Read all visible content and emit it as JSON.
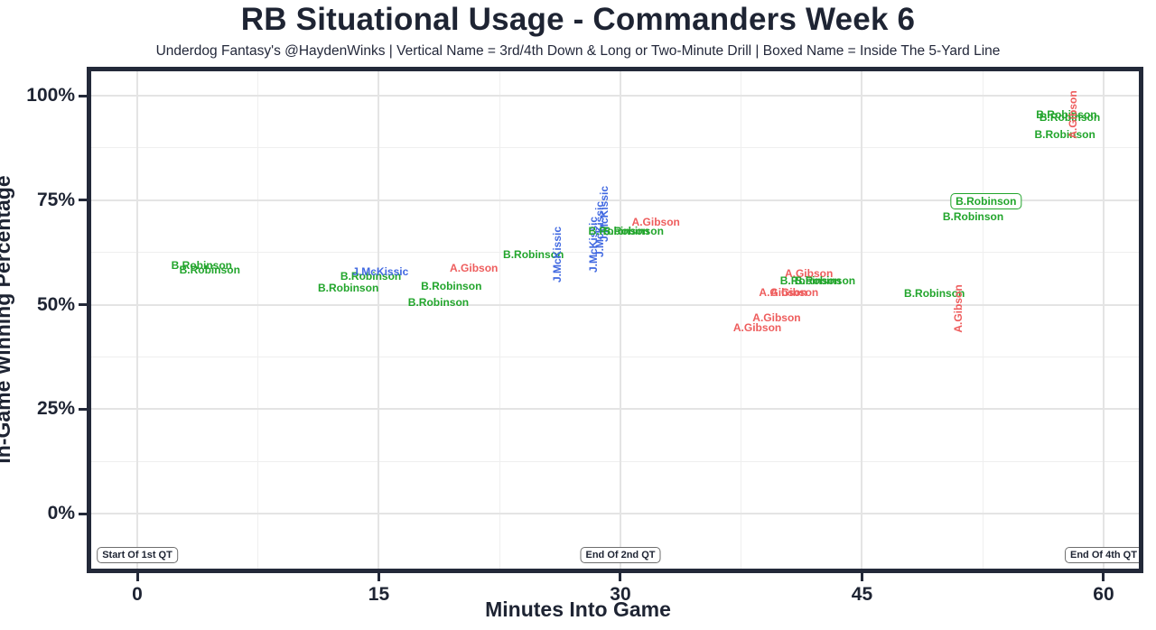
{
  "header": {
    "title": "RB Situational Usage - Commanders Week 6",
    "subtitle": "Underdog Fantasy's @HaydenWinks | Vertical Name = 3rd/4th Down & Long or Two-Minute Drill | Boxed Name = Inside The 5-Yard Line"
  },
  "chart_data": {
    "type": "scatter",
    "title": "RB Situational Usage - Commanders Week 6",
    "subtitle": "Underdog Fantasy's @HaydenWinks | Vertical Name = 3rd/4th Down & Long or Two-Minute Drill | Boxed Name = Inside The 5-Yard Line",
    "xlabel": "Minutes Into Game",
    "ylabel": "In-Game Winning Percentage",
    "xlim": [
      -2.9,
      62.7
    ],
    "ylim": [
      -15.3,
      105.8
    ],
    "x_ticks": [
      0,
      15,
      30,
      45,
      60
    ],
    "x_minor_gridlines": [
      7.5,
      22.5,
      37.5,
      52.5
    ],
    "y_ticks": [
      0,
      25,
      50,
      75,
      100
    ],
    "y_minor_gridlines": [
      12.5,
      37.5,
      62.5,
      87.5
    ],
    "y_tick_suffix": "%",
    "grid": true,
    "legend_position": "none",
    "point_style": "text-label",
    "series_colors": {
      "B.Robinson": "#22a52c",
      "J.McKissic": "#4169e1",
      "A.Gibson": "#ee5d5d"
    },
    "points": [
      {
        "player": "B.Robinson",
        "x": 4.0,
        "y": 59.3,
        "orientation": "horizontal",
        "boxed": false
      },
      {
        "player": "B.Robinson",
        "x": 4.5,
        "y": 58.4,
        "orientation": "horizontal",
        "boxed": false
      },
      {
        "player": "B.Robinson",
        "x": 13.1,
        "y": 53.9,
        "orientation": "horizontal",
        "boxed": false
      },
      {
        "player": "B.Robinson",
        "x": 14.5,
        "y": 56.9,
        "orientation": "horizontal",
        "boxed": false
      },
      {
        "player": "J.McKissic",
        "x": 15.1,
        "y": 57.8,
        "orientation": "horizontal",
        "boxed": false
      },
      {
        "player": "B.Robinson",
        "x": 18.7,
        "y": 50.6,
        "orientation": "horizontal",
        "boxed": false
      },
      {
        "player": "B.Robinson",
        "x": 19.5,
        "y": 54.5,
        "orientation": "horizontal",
        "boxed": false
      },
      {
        "player": "A.Gibson",
        "x": 20.9,
        "y": 58.8,
        "orientation": "horizontal",
        "boxed": false
      },
      {
        "player": "B.Robinson",
        "x": 24.6,
        "y": 61.9,
        "orientation": "horizontal",
        "boxed": false
      },
      {
        "player": "J.McKissic",
        "x": 26.1,
        "y": 61.9,
        "orientation": "vertical",
        "boxed": false
      },
      {
        "player": "J.McKissic",
        "x": 28.3,
        "y": 64.4,
        "orientation": "vertical",
        "boxed": false
      },
      {
        "player": "J.McKissic",
        "x": 28.7,
        "y": 68.1,
        "orientation": "vertical",
        "boxed": false
      },
      {
        "player": "J.McKissic",
        "x": 29.0,
        "y": 71.6,
        "orientation": "vertical",
        "boxed": false
      },
      {
        "player": "B.Robinson",
        "x": 29.9,
        "y": 67.7,
        "orientation": "horizontal",
        "boxed": false
      },
      {
        "player": "B.Robinson",
        "x": 30.8,
        "y": 67.5,
        "orientation": "horizontal",
        "boxed": false
      },
      {
        "player": "A.Gibson",
        "x": 32.2,
        "y": 69.8,
        "orientation": "horizontal",
        "boxed": false
      },
      {
        "player": "A.Gibson",
        "x": 38.5,
        "y": 44.4,
        "orientation": "horizontal",
        "boxed": false
      },
      {
        "player": "A.Gibson",
        "x": 39.7,
        "y": 46.8,
        "orientation": "horizontal",
        "boxed": false
      },
      {
        "player": "A.Gibson",
        "x": 40.1,
        "y": 53.0,
        "orientation": "horizontal",
        "boxed": false
      },
      {
        "player": "A.Gibson",
        "x": 40.8,
        "y": 53.0,
        "orientation": "horizontal",
        "boxed": false
      },
      {
        "player": "A.Gibson",
        "x": 41.7,
        "y": 57.5,
        "orientation": "horizontal",
        "boxed": false
      },
      {
        "player": "B.Robinson",
        "x": 41.8,
        "y": 55.8,
        "orientation": "horizontal",
        "boxed": false
      },
      {
        "player": "B.Robinson",
        "x": 42.7,
        "y": 55.8,
        "orientation": "horizontal",
        "boxed": false
      },
      {
        "player": "B.Robinson",
        "x": 49.5,
        "y": 52.6,
        "orientation": "horizontal",
        "boxed": false
      },
      {
        "player": "A.Gibson",
        "x": 51.0,
        "y": 49.1,
        "orientation": "vertical",
        "boxed": false
      },
      {
        "player": "B.Robinson",
        "x": 51.9,
        "y": 71.1,
        "orientation": "horizontal",
        "boxed": false
      },
      {
        "player": "B.Robinson",
        "x": 52.7,
        "y": 74.8,
        "orientation": "horizontal",
        "boxed": true
      },
      {
        "player": "B.Robinson",
        "x": 57.6,
        "y": 90.7,
        "orientation": "horizontal",
        "boxed": false
      },
      {
        "player": "B.Robinson",
        "x": 57.7,
        "y": 95.5,
        "orientation": "horizontal",
        "boxed": false
      },
      {
        "player": "B.Robinson",
        "x": 57.9,
        "y": 94.8,
        "orientation": "horizontal",
        "boxed": false
      },
      {
        "player": "A.Gibson",
        "x": 58.1,
        "y": 95.5,
        "orientation": "vertical",
        "boxed": false
      }
    ],
    "annotations": [
      {
        "text": "Start Of 1st QT",
        "x": 0,
        "y": -10
      },
      {
        "text": "End Of 2nd QT",
        "x": 30,
        "y": -10
      },
      {
        "text": "End Of 4th QT",
        "x": 60,
        "y": -10
      }
    ]
  },
  "colors": {
    "title_text": "#1e2433",
    "axis_border": "#232939",
    "grid_major": "#e4e4e4",
    "grid_minor": "#efefef",
    "annotation_border": "#6e6e6e",
    "background": "#ffffff"
  }
}
